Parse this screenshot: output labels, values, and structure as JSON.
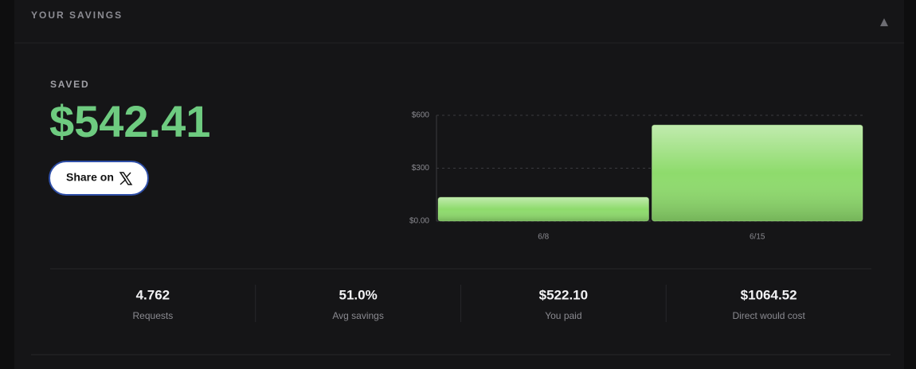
{
  "header": {
    "title": "YOUR SAVINGS"
  },
  "saved": {
    "label": "SAVED",
    "amount": "$542.41",
    "share_button": "Share on"
  },
  "chart_data": {
    "type": "bar",
    "categories": [
      "6/8",
      "6/15"
    ],
    "values": [
      135,
      545
    ],
    "color": "#8edb6c",
    "ylim": [
      0,
      600
    ],
    "yticks": [
      {
        "value": 0,
        "label": "$0.00"
      },
      {
        "value": 300,
        "label": "$300"
      },
      {
        "value": 600,
        "label": "$600"
      }
    ],
    "grid": true
  },
  "stats": [
    {
      "value": "4.762",
      "label": "Requests"
    },
    {
      "value": "51.0%",
      "label": "Avg savings"
    },
    {
      "value": "$522.10",
      "label": "You paid"
    },
    {
      "value": "$1064.52",
      "label": "Direct would cost"
    }
  ]
}
